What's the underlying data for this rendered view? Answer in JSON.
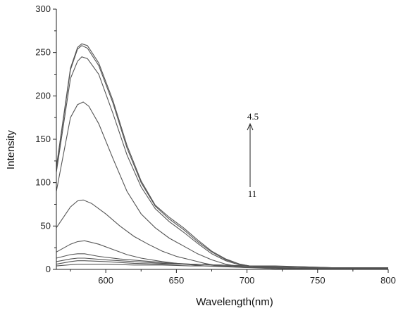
{
  "chart_data": {
    "type": "line",
    "xlabel": "Wavelength(nm)",
    "ylabel": "Intensity",
    "xlim": [
      565,
      800
    ],
    "ylim": [
      0,
      300
    ],
    "xticks": [
      600,
      650,
      700,
      750,
      800
    ],
    "yticks": [
      0,
      50,
      100,
      150,
      200,
      250,
      300
    ],
    "grid": false,
    "legend": "none",
    "line_color": "#555555",
    "annotations": {
      "top_label": "4.5",
      "bottom_label": "11",
      "arrow_direction": "up"
    },
    "series": [
      {
        "x": [
          565,
          575,
          580,
          583,
          587,
          595,
          605,
          615,
          625,
          635,
          645,
          655,
          665,
          675,
          685,
          695,
          705,
          720,
          740,
          760,
          780,
          800
        ],
        "y": [
          118,
          232,
          256,
          260,
          258,
          238,
          195,
          143,
          102,
          74,
          60,
          48,
          34,
          21,
          12,
          6,
          3,
          2,
          1,
          1,
          1,
          1
        ]
      },
      {
        "x": [
          565,
          575,
          580,
          583,
          587,
          595,
          605,
          615,
          625,
          635,
          645,
          655,
          665,
          675,
          685,
          695,
          705,
          720,
          740,
          760,
          780,
          800
        ],
        "y": [
          116,
          230,
          254,
          258,
          255,
          235,
          192,
          140,
          100,
          73,
          58,
          46,
          32,
          20,
          11,
          6,
          3,
          2,
          1,
          1,
          1,
          1
        ]
      },
      {
        "x": [
          565,
          575,
          580,
          583,
          587,
          595,
          605,
          615,
          625,
          635,
          645,
          655,
          665,
          675,
          685,
          695,
          705,
          720,
          740,
          760,
          780,
          800
        ],
        "y": [
          112,
          220,
          240,
          245,
          243,
          225,
          180,
          132,
          95,
          70,
          55,
          43,
          30,
          18,
          10,
          5,
          3,
          2,
          1,
          1,
          1,
          1
        ]
      },
      {
        "x": [
          565,
          575,
          580,
          584,
          588,
          595,
          605,
          615,
          625,
          635,
          645,
          655,
          665,
          675,
          685,
          695,
          705,
          720,
          740,
          760,
          780,
          800
        ],
        "y": [
          90,
          175,
          190,
          193,
          188,
          168,
          128,
          90,
          64,
          48,
          36,
          27,
          18,
          11,
          6,
          3,
          2,
          1,
          1,
          1,
          1,
          1
        ]
      },
      {
        "x": [
          565,
          575,
          580,
          584,
          590,
          600,
          610,
          620,
          630,
          640,
          650,
          660,
          670,
          680,
          690,
          700,
          720,
          740,
          760,
          780,
          800
        ],
        "y": [
          48,
          72,
          79,
          80,
          76,
          64,
          50,
          38,
          29,
          21,
          15,
          11,
          7,
          4,
          3,
          2,
          1,
          1,
          1,
          1,
          1
        ]
      },
      {
        "x": [
          565,
          575,
          580,
          585,
          595,
          605,
          615,
          625,
          640,
          655,
          670,
          685,
          700,
          720,
          740,
          760,
          780,
          800
        ],
        "y": [
          20,
          29,
          32,
          33,
          29,
          23,
          17,
          13,
          9,
          6,
          4,
          3,
          2,
          2,
          1,
          1,
          1,
          1
        ]
      },
      {
        "x": [
          565,
          575,
          580,
          585,
          595,
          610,
          625,
          640,
          660,
          680,
          700,
          720,
          740,
          760,
          780,
          800
        ],
        "y": [
          13,
          17,
          18,
          18,
          15,
          12,
          10,
          8,
          6,
          5,
          4,
          3,
          2,
          2,
          1,
          1
        ]
      },
      {
        "x": [
          565,
          575,
          580,
          585,
          600,
          620,
          640,
          660,
          680,
          700,
          720,
          740,
          760,
          780,
          800
        ],
        "y": [
          9,
          12,
          13,
          13,
          11,
          9,
          7,
          6,
          5,
          4,
          4,
          3,
          2,
          2,
          2
        ]
      },
      {
        "x": [
          565,
          575,
          580,
          585,
          600,
          620,
          640,
          660,
          680,
          700,
          720,
          740,
          760,
          780,
          800
        ],
        "y": [
          6,
          9,
          10,
          10,
          9,
          7,
          6,
          6,
          5,
          4,
          3,
          3,
          2,
          2,
          2
        ]
      },
      {
        "x": [
          565,
          580,
          600,
          620,
          640,
          660,
          680,
          700,
          720,
          740,
          760,
          780,
          800
        ],
        "y": [
          4,
          6,
          6,
          5,
          5,
          4,
          4,
          3,
          3,
          2,
          2,
          2,
          2
        ]
      }
    ]
  }
}
